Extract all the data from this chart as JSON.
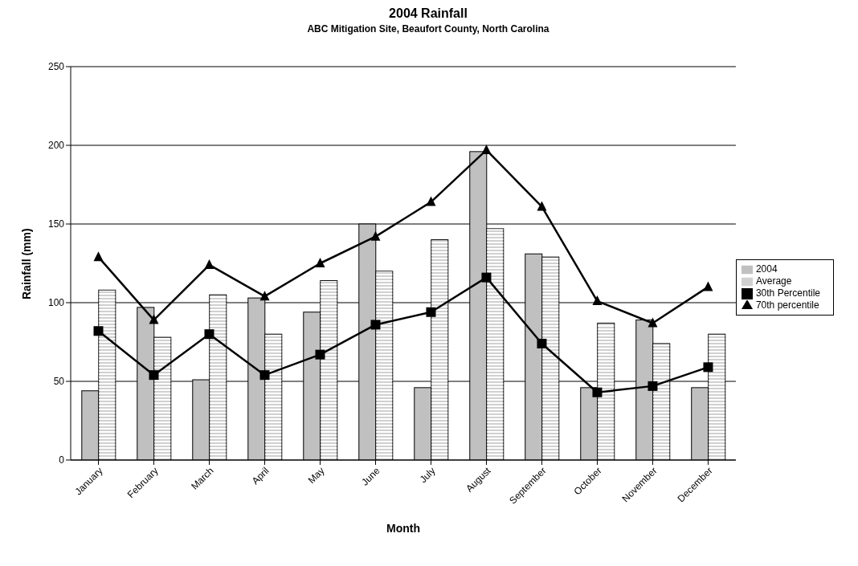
{
  "chart_data": {
    "type": "bar",
    "title": "2004 Rainfall",
    "subtitle": "ABC Mitigation Site, Beaufort County, North Carolina",
    "xlabel": "Month",
    "ylabel": "Rainfall (mm)",
    "categories": [
      "January",
      "February",
      "March",
      "April",
      "May",
      "June",
      "July",
      "August",
      "September",
      "October",
      "November",
      "December"
    ],
    "series": [
      {
        "name": "2004",
        "color": "#c0c0c0",
        "values": [
          44,
          97,
          51,
          103,
          94,
          150,
          46,
          196,
          131,
          46,
          89,
          46
        ]
      },
      {
        "name": "Average",
        "color": "#d0d0d0",
        "values": [
          108,
          78,
          105,
          80,
          114,
          120,
          140,
          147,
          129,
          87,
          74,
          80
        ]
      },
      {
        "name": "30th Percentile",
        "type": "line",
        "color": "#000000",
        "marker": "square",
        "values": [
          82,
          54,
          80,
          54,
          67,
          86,
          94,
          116,
          74,
          43,
          47,
          59
        ]
      },
      {
        "name": "70th percentile",
        "type": "line",
        "color": "#000000",
        "marker": "triangle",
        "values": [
          129,
          89,
          124,
          104,
          125,
          142,
          164,
          197,
          161,
          101,
          87,
          110
        ]
      }
    ],
    "ylim": [
      0,
      250
    ],
    "yticks": [
      0,
      50,
      100,
      150,
      200,
      250
    ],
    "grid": "y",
    "legend": "right"
  }
}
